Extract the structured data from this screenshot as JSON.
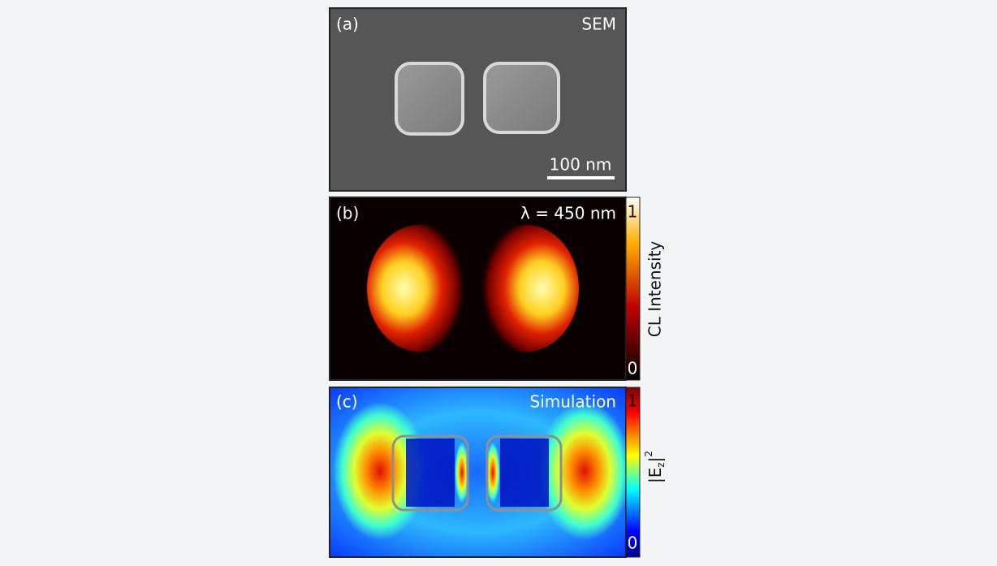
{
  "panels": [
    {
      "label": "(a)",
      "title": "SEM",
      "scale_bar": "100 nm"
    },
    {
      "label": "(b)",
      "title": "λ = 450 nm",
      "colorbar": {
        "max": "1",
        "min": "0",
        "label": "CL Intensity"
      }
    },
    {
      "label": "(c)",
      "title": "Simulation",
      "colorbar": {
        "max": "1",
        "min": "0",
        "label": {
          "base": "|E",
          "sub": "z",
          "close": "|",
          "sup": "2"
        }
      }
    }
  ]
}
